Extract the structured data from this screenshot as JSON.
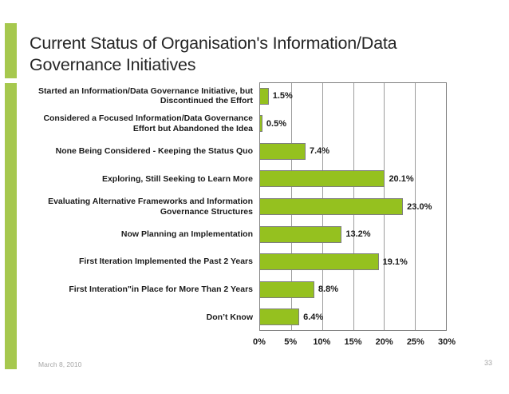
{
  "slide": {
    "title": "Current Status of Organisation's Information/Data Governance Initiatives",
    "title_line1": "Current Status of Organisation's Information/Data",
    "title_line2": "Governance Initiatives",
    "footer_date": "March 8, 2010",
    "page_number": "33"
  },
  "colors": {
    "bar_fill": "#95C11F",
    "bar_border": "#7F7F7F",
    "accent_bar": "#A6C84E",
    "gridline": "#9C9C9C",
    "plot_border": "#808080",
    "title_text": "#262626",
    "label_text": "#1A1A1A",
    "footer_text": "#A6A6A6"
  },
  "chart_data": {
    "type": "bar",
    "orientation": "horizontal",
    "title": "Current Status of Organisation's Information/Data Governance Initiatives",
    "xlabel": "",
    "ylabel": "",
    "categories": [
      "Started an Information/Data Governance Initiative, but Discontinued the Effort",
      "Considered a Focused Information/Data Governance Effort but Abandoned the Idea",
      "None Being Considered - Keeping the Status Quo",
      "Exploring, Still Seeking to Learn More",
      "Evaluating Alternative Frameworks and Information Governance Structures",
      "Now Planning an Implementation",
      "First Iteration Implemented the Past 2 Years",
      "First Interation\"in Place for More Than 2 Years",
      "Don’t Know"
    ],
    "values": [
      1.5,
      0.5,
      7.4,
      20.1,
      23.0,
      13.2,
      19.1,
      8.8,
      6.4
    ],
    "value_labels": [
      "1.5%",
      "0.5%",
      "7.4%",
      "20.1%",
      "23.0%",
      "13.2%",
      "19.1%",
      "8.8%",
      "6.4%"
    ],
    "xlim": [
      0,
      30
    ],
    "x_tick_values": [
      0,
      5,
      10,
      15,
      20,
      25,
      30
    ],
    "x_tick_labels": [
      "0%",
      "5%",
      "10%",
      "15%",
      "20%",
      "25%",
      "30%"
    ],
    "grid": true,
    "legend": false
  }
}
